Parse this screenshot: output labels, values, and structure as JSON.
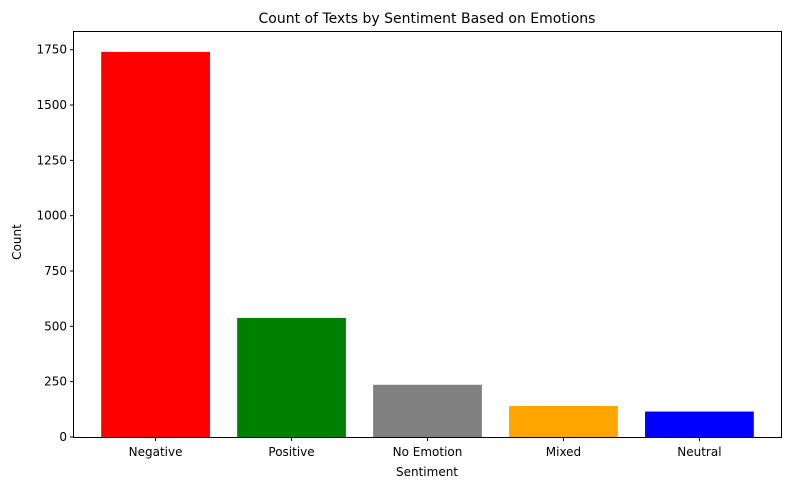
{
  "chart_data": {
    "type": "bar",
    "title": "Count of Texts by Sentiment Based on Emotions",
    "xlabel": "Sentiment",
    "ylabel": "Count",
    "categories": [
      "Negative",
      "Positive",
      "No Emotion",
      "Mixed",
      "Neutral"
    ],
    "values": [
      1740,
      538,
      236,
      140,
      115
    ],
    "colors": [
      "#ff0000",
      "#008000",
      "#808080",
      "#ffa500",
      "#0000ff"
    ],
    "ylim": [
      0,
      1830
    ],
    "yticks": [
      0,
      250,
      500,
      750,
      1000,
      1250,
      1500,
      1750
    ],
    "grid": false,
    "legend": "none"
  }
}
